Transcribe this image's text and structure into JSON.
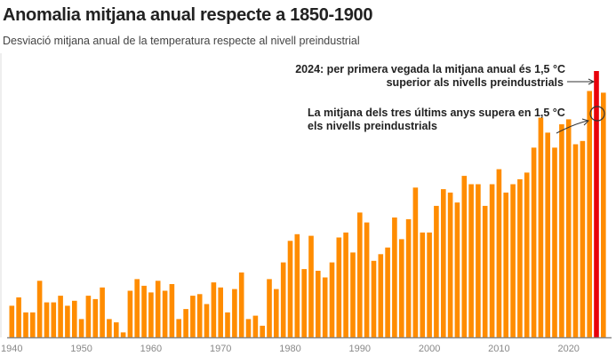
{
  "chart_data": {
    "type": "bar",
    "title": "Anomalia mitjana anual respecte a 1850-1900",
    "subtitle": "Desviació mitjana anual de la temperatura respecte al nivell preindustrial",
    "xlabel": "",
    "ylabel": "",
    "unit": "°C",
    "ylim": [
      0,
      1.6
    ],
    "x_ticks": [
      "1940",
      "1950",
      "1960",
      "1970",
      "1980",
      "1990",
      "2000",
      "2010",
      "2020"
    ],
    "years": [
      1940,
      1941,
      1942,
      1943,
      1944,
      1945,
      1946,
      1947,
      1948,
      1949,
      1950,
      1951,
      1952,
      1953,
      1954,
      1955,
      1956,
      1957,
      1958,
      1959,
      1960,
      1961,
      1962,
      1963,
      1964,
      1965,
      1966,
      1967,
      1968,
      1969,
      1970,
      1971,
      1972,
      1973,
      1974,
      1975,
      1976,
      1977,
      1978,
      1979,
      1980,
      1981,
      1982,
      1983,
      1984,
      1985,
      1986,
      1987,
      1988,
      1989,
      1990,
      1991,
      1992,
      1993,
      1994,
      1995,
      1996,
      1997,
      1998,
      1999,
      2000,
      2001,
      2002,
      2003,
      2004,
      2005,
      2006,
      2007,
      2008,
      2009,
      2010,
      2011,
      2012,
      2013,
      2014,
      2015,
      2016,
      2017,
      2018,
      2019,
      2020,
      2021,
      2022,
      2023,
      2024,
      2025
    ],
    "values": [
      0.19,
      0.24,
      0.15,
      0.15,
      0.34,
      0.21,
      0.21,
      0.25,
      0.19,
      0.22,
      0.11,
      0.25,
      0.23,
      0.3,
      0.11,
      0.09,
      0.03,
      0.28,
      0.35,
      0.31,
      0.27,
      0.34,
      0.28,
      0.32,
      0.11,
      0.17,
      0.25,
      0.26,
      0.2,
      0.33,
      0.3,
      0.15,
      0.29,
      0.39,
      0.11,
      0.13,
      0.07,
      0.35,
      0.29,
      0.45,
      0.58,
      0.62,
      0.41,
      0.61,
      0.4,
      0.36,
      0.45,
      0.6,
      0.63,
      0.51,
      0.75,
      0.69,
      0.46,
      0.5,
      0.54,
      0.72,
      0.59,
      0.71,
      0.9,
      0.63,
      0.63,
      0.79,
      0.89,
      0.87,
      0.81,
      0.97,
      0.92,
      0.92,
      0.79,
      0.92,
      1.01,
      0.87,
      0.92,
      0.95,
      0.99,
      1.14,
      1.32,
      1.23,
      1.14,
      1.28,
      1.31,
      1.16,
      1.18,
      1.48,
      1.6,
      1.47
    ],
    "highlight_year": 2024,
    "colors": {
      "bar": "#ff8c00",
      "highlight": "#e8000b",
      "axis": "#888888"
    },
    "annotations": [
      {
        "year": 2024,
        "lines": [
          "2024: per primera vegada la mitjana anual és 1,5 °C",
          "superior als nivells preindustrials"
        ]
      },
      {
        "year": 2024,
        "value": 1.5,
        "lines": [
          "La mitjana dels tres últims anys supera en 1,5 °C",
          "els nivells preindustrials"
        ]
      }
    ],
    "grid": false,
    "legend": "none"
  }
}
